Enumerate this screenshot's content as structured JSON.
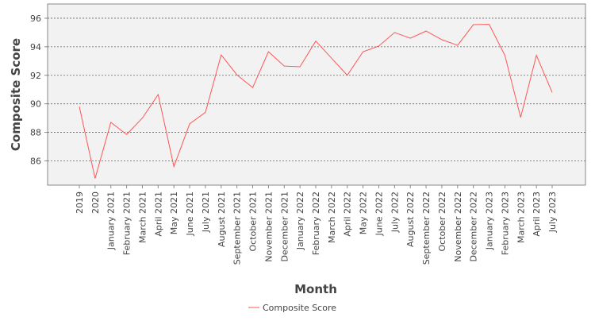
{
  "chart_data": {
    "type": "line",
    "x_label": "Month",
    "y_label": "Composite Score",
    "categories": [
      "2019",
      "2020",
      "January 2021",
      "February 2021",
      "March 2021",
      "April 2021",
      "May 2021",
      "June 2021",
      "July 2021",
      "August 2021",
      "September 2021",
      "October 2021",
      "November 2021",
      "December 2021",
      "January 2022",
      "February 2022",
      "March 2022",
      "April 2022",
      "May 2022",
      "June 2022",
      "July 2022",
      "August 2022",
      "September 2022",
      "October 2022",
      "November 2022",
      "December 2022",
      "January 2023",
      "February 2023",
      "March 2023",
      "April 2023",
      "July 2023"
    ],
    "series": [
      {
        "name": "Composite Score",
        "color": "#ff5555",
        "values": [
          89.8,
          84.77,
          88.7,
          87.85,
          89.0,
          90.65,
          85.6,
          88.6,
          89.4,
          93.43,
          92.03,
          91.14,
          93.65,
          92.65,
          92.6,
          94.4,
          93.2,
          92.0,
          93.65,
          94.05,
          95.0,
          94.6,
          95.1,
          94.5,
          94.1,
          95.55,
          95.57,
          93.4,
          89.05,
          93.4,
          90.8
        ]
      }
    ],
    "ylim": [
      84.3,
      97.0
    ],
    "yticks": [
      86,
      88,
      90,
      92,
      94,
      96
    ],
    "grid": true,
    "legend": "bottom"
  }
}
